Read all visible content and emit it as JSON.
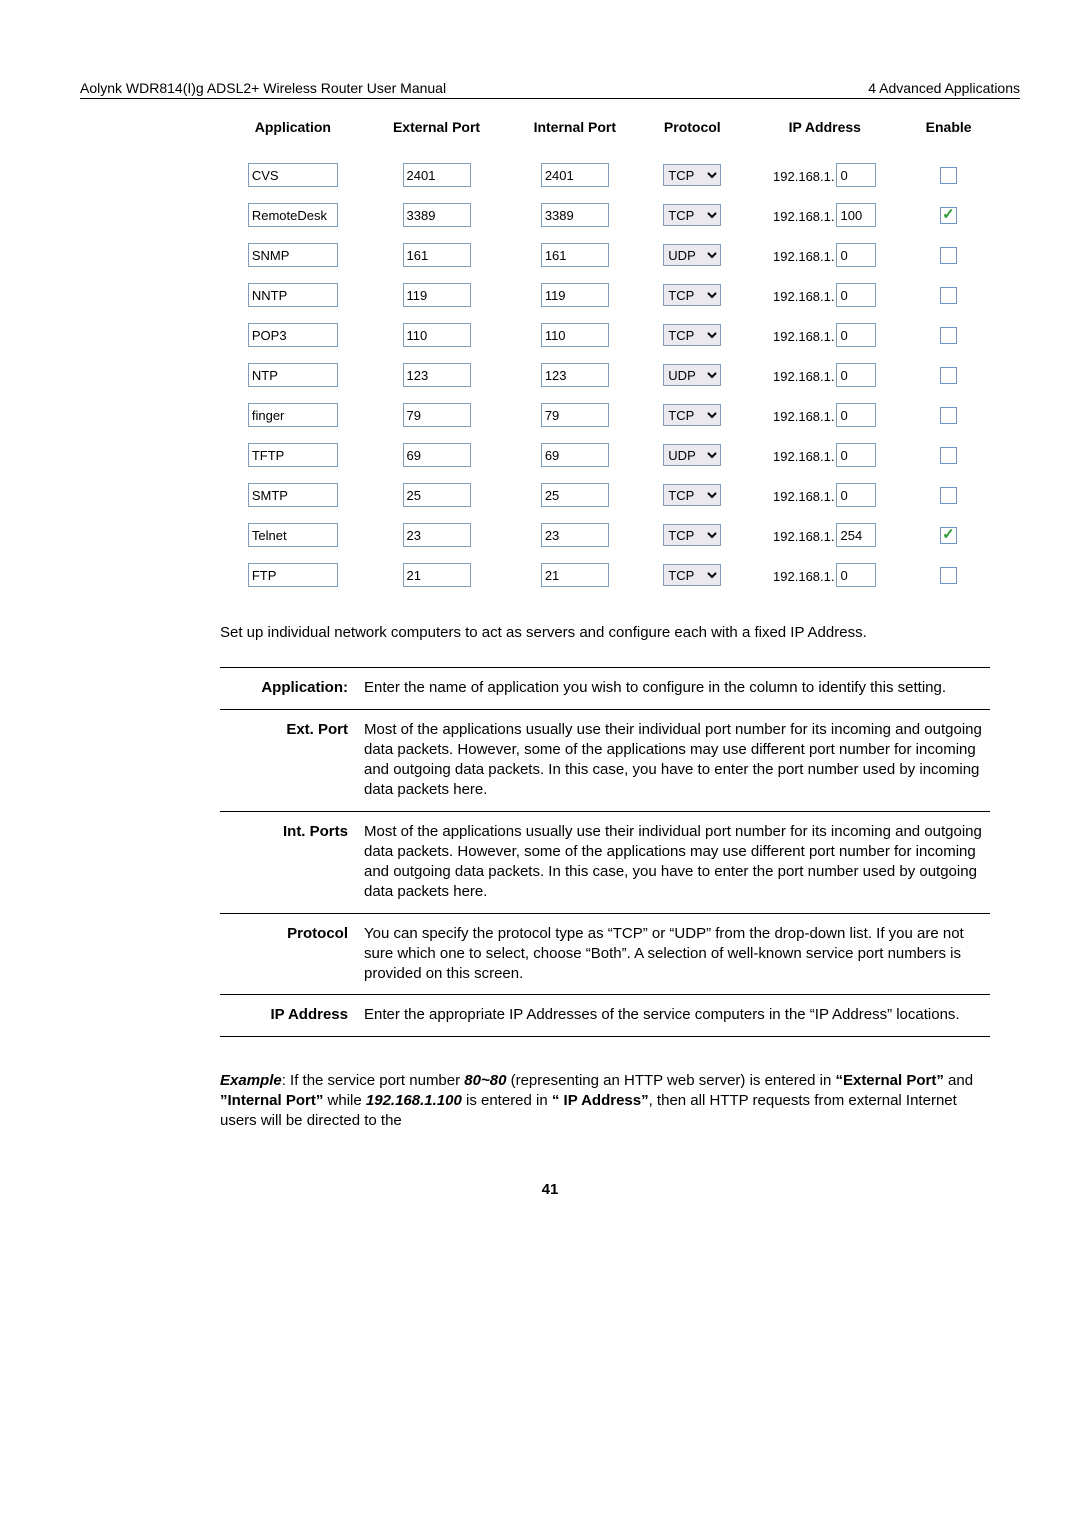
{
  "header": {
    "left": "Aolynk WDR814(I)g ADSL2+ Wireless Router User Manual",
    "right": "4 Advanced Applications"
  },
  "vs": {
    "headers": {
      "app": "Application",
      "ext": "External Port",
      "int": "Internal Port",
      "proto": "Protocol",
      "ip": "IP Address",
      "enable": "Enable"
    },
    "ip_prefix": "192.168.1.",
    "rows": [
      {
        "app": "CVS",
        "ext": "2401",
        "int": "2401",
        "proto": "TCP",
        "ip": "0",
        "enable": false
      },
      {
        "app": "RemoteDesk",
        "ext": "3389",
        "int": "3389",
        "proto": "TCP",
        "ip": "100",
        "enable": true
      },
      {
        "app": "SNMP",
        "ext": "161",
        "int": "161",
        "proto": "UDP",
        "ip": "0",
        "enable": false
      },
      {
        "app": "NNTP",
        "ext": "119",
        "int": "119",
        "proto": "TCP",
        "ip": "0",
        "enable": false
      },
      {
        "app": "POP3",
        "ext": "110",
        "int": "110",
        "proto": "TCP",
        "ip": "0",
        "enable": false
      },
      {
        "app": "NTP",
        "ext": "123",
        "int": "123",
        "proto": "UDP",
        "ip": "0",
        "enable": false
      },
      {
        "app": "finger",
        "ext": "79",
        "int": "79",
        "proto": "TCP",
        "ip": "0",
        "enable": false
      },
      {
        "app": "TFTP",
        "ext": "69",
        "int": "69",
        "proto": "UDP",
        "ip": "0",
        "enable": false
      },
      {
        "app": "SMTP",
        "ext": "25",
        "int": "25",
        "proto": "TCP",
        "ip": "0",
        "enable": false
      },
      {
        "app": "Telnet",
        "ext": "23",
        "int": "23",
        "proto": "TCP",
        "ip": "254",
        "enable": true
      },
      {
        "app": "FTP",
        "ext": "21",
        "int": "21",
        "proto": "TCP",
        "ip": "0",
        "enable": false
      }
    ]
  },
  "para1": "Set up individual network computers to act as servers and configure each with a fixed IP Address.",
  "defs": [
    {
      "label": "Application:",
      "text": "Enter the name of application you wish to configure in the column to identify this setting."
    },
    {
      "label": "Ext. Port",
      "text": "Most of the applications usually use their individual port number for its incoming and outgoing data packets. However, some of the applications may use different port number for incoming and outgoing data packets. In this case, you have to enter the port number used by incoming data packets here."
    },
    {
      "label": "Int. Ports",
      "text": "Most of the applications usually use their individual port number for its incoming and outgoing data packets. However, some of the applications may use different port number for incoming and outgoing data packets. In this case, you have to enter the port number used by outgoing data packets here."
    },
    {
      "label": "Protocol",
      "text": "You can specify the protocol type as “TCP” or “UDP” from the drop-down list. If you are not sure which one to select, choose “Both”. A selection of well-known service port numbers is provided on this screen."
    },
    {
      "label": "IP Address",
      "text": "Enter the appropriate IP Addresses of the service computers in the “IP Address” locations."
    }
  ],
  "example": {
    "lead": "Example",
    "t1": ":  If the service port number ",
    "port": "80~80",
    "t2": " (representing an HTTP web server) is entered in ",
    "extq": "“External Port”",
    "t3": " and ",
    "intq": "”Internal Port”",
    "t4": " while ",
    "ip": "192.168.1.100",
    "t5": " is entered in ",
    "ipq": "“ IP Address”",
    "t6": ", then all HTTP requests from external Internet users will be directed to the"
  },
  "page_num": "41"
}
